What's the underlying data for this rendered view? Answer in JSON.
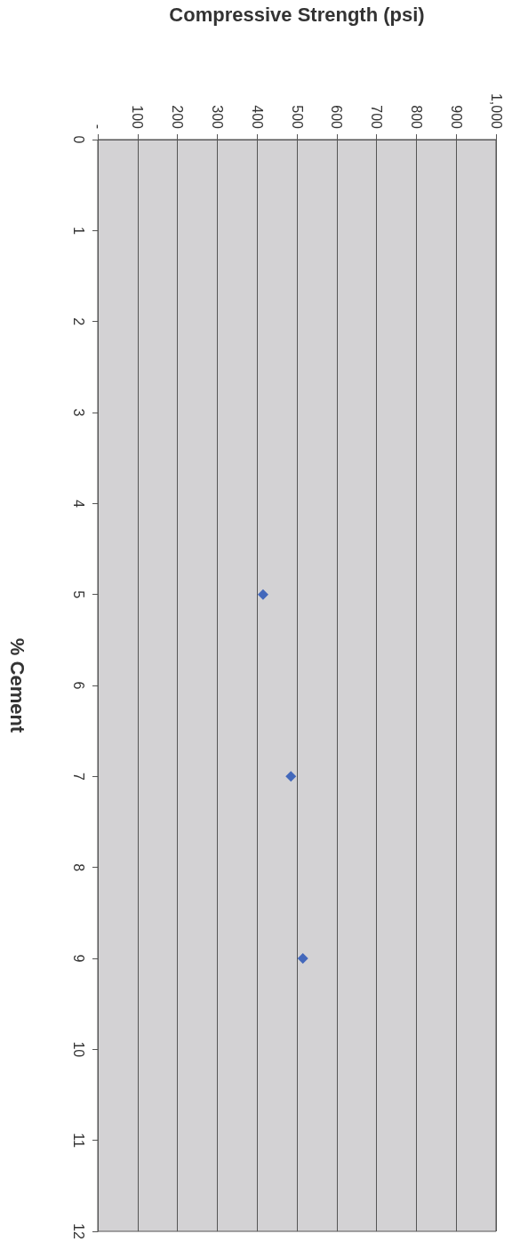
{
  "chart_data": {
    "type": "scatter",
    "xlabel": "Compressive Strength (psi)",
    "ylabel": "% Cement",
    "x": [
      415,
      485,
      515
    ],
    "series": [
      {
        "color": "#1f4eb4",
        "values": [
          5,
          7,
          9
        ]
      }
    ],
    "xlim": [
      0,
      1000
    ],
    "xticks": [
      {
        "value": 0,
        "label": "-"
      },
      100,
      200,
      300,
      400,
      500,
      600,
      700,
      800,
      900,
      {
        "value": 1000,
        "label": "1,000"
      }
    ],
    "ylim": [
      12,
      0
    ],
    "yticks": [
      0,
      1,
      2,
      3,
      4,
      5,
      6,
      7,
      8,
      9,
      10,
      11,
      12
    ],
    "grid": "x",
    "marker": "diamond"
  }
}
